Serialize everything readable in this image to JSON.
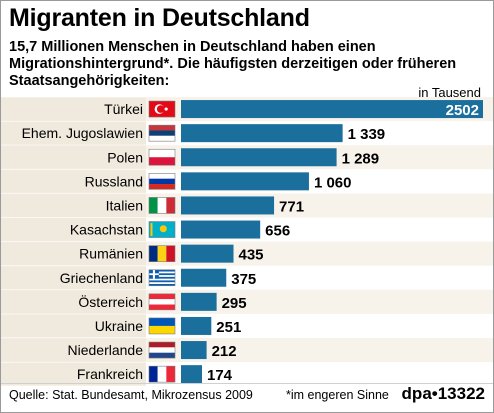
{
  "title": "Migranten in Deutschland",
  "subtitle": "15,7 Millionen Menschen in Deutschland haben einen Migrationshintergrund*. Die häufigsten derzeitigen oder früheren Staatsangehörigkeiten:",
  "unit_label": "in Tausend",
  "source": "Quelle: Stat. Bundesamt, Mikrozensus 2009",
  "footnote": "*im engeren Sinne",
  "agency": "dpa•13322",
  "colors": {
    "bar": "#1b6f9d",
    "label_band": "#f0e9dd",
    "row_band": "#f7f2ea"
  },
  "chart_data": {
    "type": "bar",
    "orientation": "horizontal",
    "title": "Migranten in Deutschland",
    "unit": "in Tausend",
    "categories": [
      "Türkei",
      "Ehem. Jugoslawien",
      "Polen",
      "Russland",
      "Italien",
      "Kasachstan",
      "Rumänien",
      "Griechenland",
      "Österreich",
      "Ukraine",
      "Niederlande",
      "Frankreich"
    ],
    "values": [
      2502,
      1339,
      1289,
      1060,
      771,
      656,
      435,
      375,
      295,
      251,
      212,
      174
    ],
    "value_labels": [
      "2502",
      "1 339",
      "1 289",
      "1 060",
      "771",
      "656",
      "435",
      "375",
      "295",
      "251",
      "212",
      "174"
    ],
    "flag_icons": [
      "turkey-flag-icon",
      "serbia-flag-icon",
      "poland-flag-icon",
      "russia-flag-icon",
      "italy-flag-icon",
      "kazakhstan-flag-icon",
      "romania-flag-icon",
      "greece-flag-icon",
      "austria-flag-icon",
      "ukraine-flag-icon",
      "netherlands-flag-icon",
      "france-flag-icon"
    ],
    "xlim": [
      0,
      2502
    ],
    "grid": false,
    "legend": "none"
  }
}
